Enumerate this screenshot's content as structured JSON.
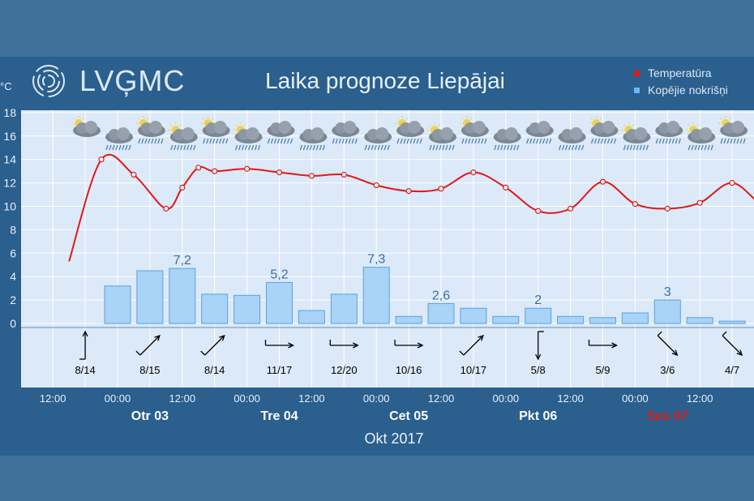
{
  "header": {
    "logo_text": "LVĢMC",
    "title": "Laika prognoze Liepājai"
  },
  "legend": [
    {
      "label": "Temperatūra",
      "color": "#e01818"
    },
    {
      "label": "Kopējie nokrišņi",
      "color": "#6ab8f5"
    }
  ],
  "colors": {
    "panel": "#2a5f8e",
    "plot": "#dce9f8",
    "temperature": "#e01818",
    "bar_fill": "#a9d3f7",
    "bar_edge": "#5aa2e0",
    "weekend": "#e01818"
  },
  "chart_data": {
    "type": "line",
    "y_unit": "°C",
    "ylim": [
      0,
      18
    ],
    "y_ticks": [
      0,
      2,
      4,
      6,
      8,
      10,
      12,
      14,
      16,
      18
    ],
    "x_ticks": [
      "12:00",
      "00:00",
      "12:00",
      "00:00",
      "12:00",
      "00:00",
      "12:00",
      "00:00",
      "12:00",
      "00:00",
      "12:00"
    ],
    "day_labels": [
      {
        "label": "Otr 03",
        "weekend": false
      },
      {
        "label": "Tre 04",
        "weekend": false
      },
      {
        "label": "Cet 05",
        "weekend": false
      },
      {
        "label": "Pkt 06",
        "weekend": false
      },
      {
        "label": "Ses 07",
        "weekend": true
      }
    ],
    "month_label": "Okt 2017",
    "series": [
      {
        "name": "Temperatūra",
        "type": "line",
        "hours": [
          -9,
          -3,
          3,
          9,
          12,
          15,
          18,
          24,
          30,
          36,
          42,
          48,
          54,
          60,
          66,
          72,
          78,
          84,
          90,
          96,
          102,
          108,
          114,
          120,
          126,
          132
        ],
        "values": [
          5.3,
          14.0,
          12.7,
          9.8,
          11.6,
          13.3,
          13.0,
          13.2,
          12.9,
          12.6,
          12.7,
          11.8,
          11.3,
          11.5,
          12.9,
          11.6,
          9.6,
          9.8,
          12.1,
          10.2,
          9.8,
          10.3,
          12.0,
          10.0,
          9.8,
          9.9
        ]
      },
      {
        "name": "Kopējie nokrišņi",
        "type": "bar",
        "hours": [
          0,
          6,
          12,
          18,
          24,
          30,
          36,
          42,
          48,
          54,
          60,
          66,
          72,
          78,
          84,
          90,
          96,
          102,
          108,
          114
        ],
        "values": [
          3.2,
          4.5,
          4.7,
          2.5,
          2.4,
          3.5,
          1.1,
          2.5,
          4.8,
          0.6,
          1.7,
          1.3,
          0.6,
          1.3,
          0.6,
          0.5,
          0.9,
          2.0,
          0.5,
          0.2
        ]
      }
    ],
    "bar_labels": [
      {
        "hour": 12,
        "text": "7,2"
      },
      {
        "hour": 30,
        "text": "5,2"
      },
      {
        "hour": 48,
        "text": "7,3"
      },
      {
        "hour": 60,
        "text": "2,6"
      },
      {
        "hour": 78,
        "text": "2"
      },
      {
        "hour": 102,
        "text": "3"
      }
    ],
    "wind": [
      {
        "hour": -6,
        "dir": 0,
        "label": "8/14"
      },
      {
        "hour": 6,
        "dir": 45,
        "label": "8/15"
      },
      {
        "hour": 18,
        "dir": 45,
        "label": "8/14"
      },
      {
        "hour": 30,
        "dir": 90,
        "label": "11/17"
      },
      {
        "hour": 42,
        "dir": 90,
        "label": "12/20"
      },
      {
        "hour": 54,
        "dir": 90,
        "label": "10/16"
      },
      {
        "hour": 66,
        "dir": 45,
        "label": "10/17"
      },
      {
        "hour": 78,
        "dir": 180,
        "label": "5/8"
      },
      {
        "hour": 90,
        "dir": 90,
        "label": "5/9"
      },
      {
        "hour": 102,
        "dir": 135,
        "label": "3/6"
      },
      {
        "hour": 114,
        "dir": 135,
        "label": "4/7"
      }
    ],
    "weather_icons": [
      {
        "hour": -6,
        "icon": "sun-cloud-icon"
      },
      {
        "hour": 0,
        "icon": "cloud-rain-icon"
      },
      {
        "hour": 6,
        "icon": "sun-cloud-rain-icon"
      },
      {
        "hour": 12,
        "icon": "sun-cloud-rain-icon"
      },
      {
        "hour": 18,
        "icon": "sun-cloud-rain-icon"
      },
      {
        "hour": 24,
        "icon": "sun-cloud-rain-icon"
      },
      {
        "hour": 30,
        "icon": "cloud-rain-icon"
      },
      {
        "hour": 36,
        "icon": "cloud-rain-icon"
      },
      {
        "hour": 42,
        "icon": "cloud-rain-icon"
      },
      {
        "hour": 48,
        "icon": "cloud-rain-icon"
      },
      {
        "hour": 54,
        "icon": "sun-cloud-rain-icon"
      },
      {
        "hour": 60,
        "icon": "sun-cloud-rain-icon"
      },
      {
        "hour": 66,
        "icon": "sun-cloud-rain-icon"
      },
      {
        "hour": 72,
        "icon": "cloud-rain-icon"
      },
      {
        "hour": 78,
        "icon": "cloud-rain-icon"
      },
      {
        "hour": 84,
        "icon": "cloud-rain-icon"
      },
      {
        "hour": 90,
        "icon": "sun-cloud-rain-icon"
      },
      {
        "hour": 96,
        "icon": "sun-cloud-rain-icon"
      },
      {
        "hour": 102,
        "icon": "cloud-rain-icon"
      },
      {
        "hour": 108,
        "icon": "sun-cloud-rain-icon"
      },
      {
        "hour": 114,
        "icon": "sun-cloud-rain-icon"
      }
    ]
  }
}
